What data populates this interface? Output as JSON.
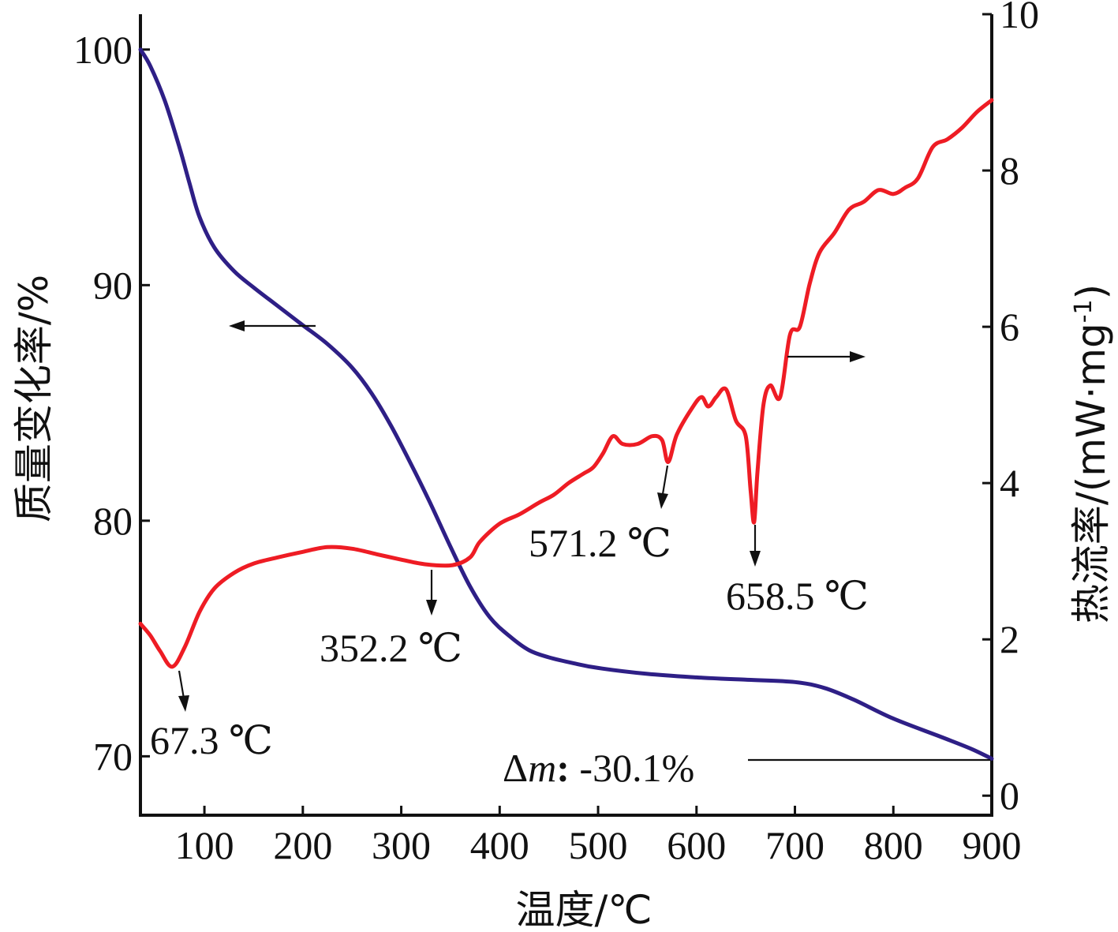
{
  "chart_data": {
    "type": "line",
    "title": "",
    "xlabel": "温度/℃",
    "ylabel_left": "质量变化率/%",
    "ylabel_right_main": "热流率/(mW·mg",
    "ylabel_right_sup": "-1",
    "ylabel_right_close": ")",
    "xlim": [
      35,
      900
    ],
    "ylim_left": [
      67.5,
      101.5
    ],
    "ylim_right": [
      -0.25,
      10
    ],
    "x_ticks": [
      100,
      200,
      300,
      400,
      500,
      600,
      700,
      800,
      900
    ],
    "y_left_ticks": [
      70,
      80,
      90,
      100
    ],
    "y_right_ticks": [
      0,
      2,
      4,
      6,
      8,
      10
    ],
    "grid": false,
    "colors": {
      "mass": "#2e1f86",
      "heat": "#ee1c24",
      "axis": "#111111"
    },
    "series": [
      {
        "axis": "left",
        "points": [
          [
            35,
            100
          ],
          [
            45,
            99.3
          ],
          [
            60,
            97.8
          ],
          [
            75,
            95.8
          ],
          [
            85,
            94.3
          ],
          [
            95,
            92.9
          ],
          [
            110,
            91.6
          ],
          [
            130,
            90.6
          ],
          [
            150,
            89.9
          ],
          [
            175,
            89.1
          ],
          [
            200,
            88.3
          ],
          [
            225,
            87.5
          ],
          [
            250,
            86.5
          ],
          [
            270,
            85.4
          ],
          [
            290,
            84.0
          ],
          [
            310,
            82.4
          ],
          [
            330,
            80.7
          ],
          [
            350,
            78.9
          ],
          [
            370,
            77.2
          ],
          [
            390,
            75.9
          ],
          [
            410,
            75.1
          ],
          [
            430,
            74.5
          ],
          [
            450,
            74.2
          ],
          [
            475,
            73.95
          ],
          [
            500,
            73.75
          ],
          [
            550,
            73.5
          ],
          [
            600,
            73.35
          ],
          [
            650,
            73.25
          ],
          [
            700,
            73.15
          ],
          [
            730,
            72.9
          ],
          [
            760,
            72.4
          ],
          [
            800,
            71.6
          ],
          [
            850,
            70.8
          ],
          [
            880,
            70.3
          ],
          [
            900,
            69.9
          ]
        ]
      },
      {
        "axis": "right",
        "points": [
          [
            35,
            2.2
          ],
          [
            45,
            2.05
          ],
          [
            55,
            1.85
          ],
          [
            67.3,
            1.65
          ],
          [
            80,
            1.9
          ],
          [
            95,
            2.35
          ],
          [
            110,
            2.65
          ],
          [
            130,
            2.85
          ],
          [
            150,
            2.97
          ],
          [
            175,
            3.05
          ],
          [
            200,
            3.12
          ],
          [
            225,
            3.18
          ],
          [
            250,
            3.16
          ],
          [
            275,
            3.09
          ],
          [
            300,
            3.02
          ],
          [
            325,
            2.96
          ],
          [
            352.2,
            2.95
          ],
          [
            370,
            3.05
          ],
          [
            380,
            3.25
          ],
          [
            400,
            3.48
          ],
          [
            420,
            3.6
          ],
          [
            440,
            3.75
          ],
          [
            455,
            3.85
          ],
          [
            470,
            4.0
          ],
          [
            485,
            4.12
          ],
          [
            495,
            4.2
          ],
          [
            505,
            4.38
          ],
          [
            515,
            4.6
          ],
          [
            525,
            4.5
          ],
          [
            540,
            4.5
          ],
          [
            555,
            4.6
          ],
          [
            565,
            4.55
          ],
          [
            571.2,
            4.27
          ],
          [
            580,
            4.62
          ],
          [
            595,
            4.95
          ],
          [
            605,
            5.1
          ],
          [
            612,
            4.98
          ],
          [
            620,
            5.1
          ],
          [
            630,
            5.2
          ],
          [
            640,
            4.8
          ],
          [
            650,
            4.6
          ],
          [
            655,
            3.9
          ],
          [
            658.5,
            3.5
          ],
          [
            662,
            4.15
          ],
          [
            668,
            5.0
          ],
          [
            675,
            5.25
          ],
          [
            685,
            5.1
          ],
          [
            695,
            5.9
          ],
          [
            705,
            6.0
          ],
          [
            715,
            6.55
          ],
          [
            725,
            6.95
          ],
          [
            740,
            7.2
          ],
          [
            755,
            7.5
          ],
          [
            770,
            7.6
          ],
          [
            785,
            7.75
          ],
          [
            800,
            7.7
          ],
          [
            812,
            7.78
          ],
          [
            825,
            7.9
          ],
          [
            840,
            8.3
          ],
          [
            855,
            8.4
          ],
          [
            870,
            8.55
          ],
          [
            885,
            8.75
          ],
          [
            900,
            8.9
          ]
        ]
      }
    ],
    "annotations": [
      {
        "text": "67.3 ℃",
        "target_x": 67.3,
        "axis": "right"
      },
      {
        "text": "352.2 ℃",
        "target_x": 352.2,
        "axis": "right"
      },
      {
        "text": "571.2 ℃",
        "target_x": 571.2,
        "axis": "right"
      },
      {
        "text": "658.5 ℃",
        "target_x": 658.5,
        "axis": "right"
      }
    ],
    "mass_change_label": {
      "prefix": "Δ",
      "variable": "m",
      "sep": ":",
      "value": " -30.1%"
    }
  }
}
